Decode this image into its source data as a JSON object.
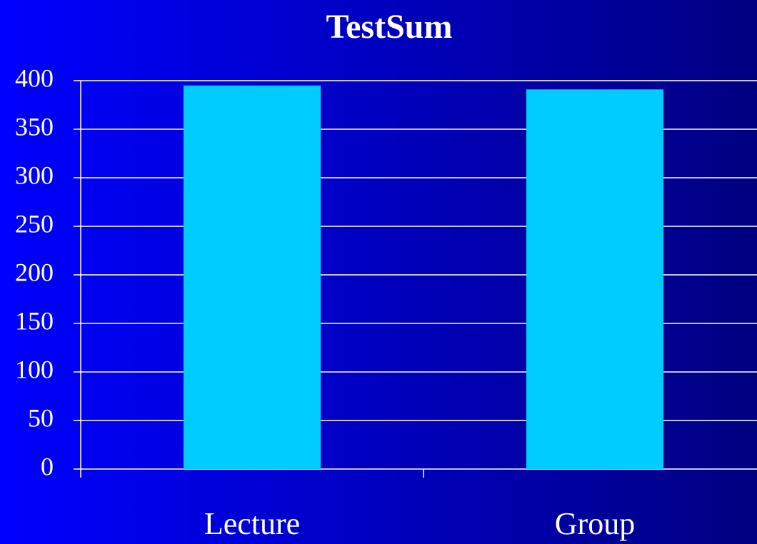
{
  "chart_data": {
    "type": "bar",
    "title": "TestSum",
    "categories": [
      "Lecture",
      "Group"
    ],
    "values": [
      395,
      391
    ],
    "color": "#00ccff",
    "ylim": [
      0,
      400
    ],
    "yticks": [
      0,
      50,
      100,
      150,
      200,
      250,
      300,
      350,
      400
    ],
    "grid": true
  }
}
